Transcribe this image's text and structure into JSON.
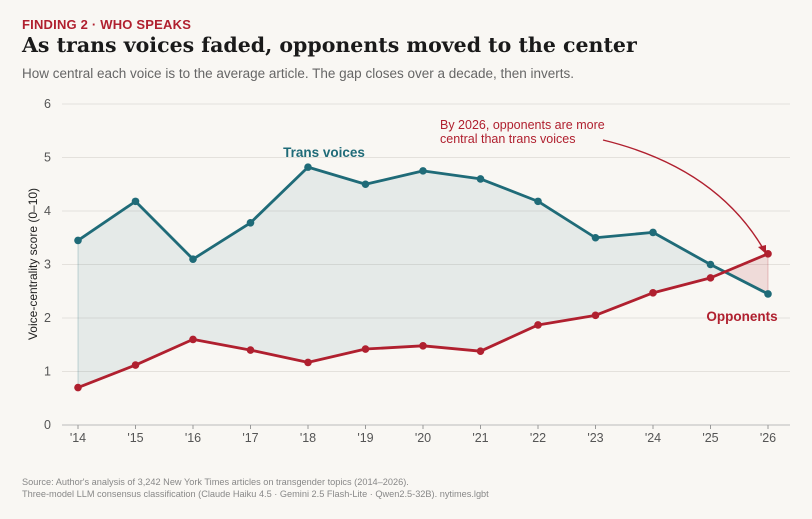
{
  "header": {
    "kicker": "FINDING 2  ·  WHO SPEAKS",
    "title": "As trans voices faded, opponents moved to the center",
    "subtitle": "How central each voice is to the average article. The gap closes over a decade, then inverts."
  },
  "chart_data": {
    "type": "line",
    "categories": [
      "'14",
      "'15",
      "'16",
      "'17",
      "'18",
      "'19",
      "'20",
      "'21",
      "'22",
      "'23",
      "'24",
      "'25",
      "'26"
    ],
    "series": [
      {
        "name": "Trans voices",
        "color": "#1f6b78",
        "values": [
          3.45,
          4.18,
          3.1,
          3.78,
          4.82,
          4.5,
          4.75,
          4.6,
          4.18,
          3.5,
          3.6,
          3.0,
          2.45
        ]
      },
      {
        "name": "Opponents",
        "color": "#b0202f",
        "values": [
          0.7,
          1.12,
          1.6,
          1.4,
          1.17,
          1.42,
          1.48,
          1.38,
          1.87,
          2.05,
          2.47,
          2.75,
          3.2
        ]
      }
    ],
    "ylabel": "Voice-centrality score (0–10)",
    "xlabel": "",
    "ylim": [
      0,
      6
    ],
    "yticks": [
      0,
      1,
      2,
      3,
      4,
      5,
      6
    ],
    "grid": true,
    "annotation": {
      "line1": "By 2026, opponents are more",
      "line2": "central than trans voices"
    }
  },
  "footer": {
    "source_line1": "Source: Author's analysis of 3,242 New York Times articles on transgender topics (2014–2026).",
    "source_line2": "Three-model LLM consensus classification (Claude Haiku 4.5 · Gemini 2.5 Flash-Lite · Qwen2.5-32B).  nytimes.lgbt"
  }
}
